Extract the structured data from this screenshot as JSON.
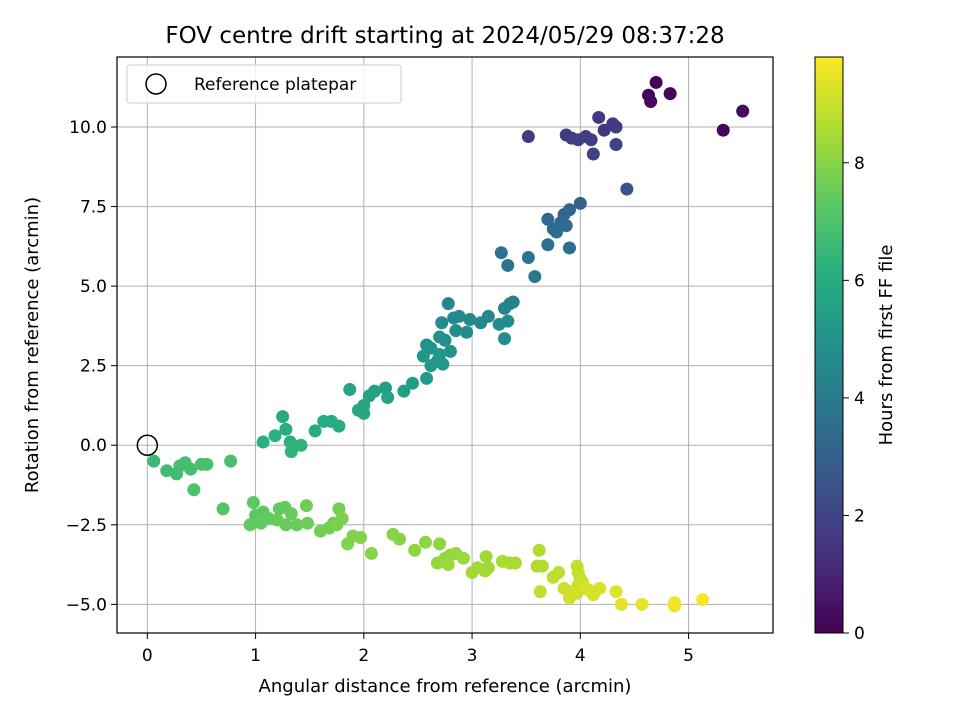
{
  "chart_data": {
    "type": "scatter",
    "title": "FOV centre drift starting at 2024/05/29 08:37:28",
    "xlabel": "Angular distance from reference (arcmin)",
    "ylabel": "Rotation from reference (arcmin)",
    "xlim": [
      -0.28,
      5.78
    ],
    "ylim": [
      -5.9,
      12.2
    ],
    "xticks": [
      0,
      1,
      2,
      3,
      4,
      5
    ],
    "xtick_labels": [
      "0",
      "1",
      "2",
      "3",
      "4",
      "5"
    ],
    "yticks": [
      -5.0,
      -2.5,
      0.0,
      2.5,
      5.0,
      7.5,
      10.0
    ],
    "ytick_labels": [
      "−5.0",
      "−2.5",
      "0.0",
      "2.5",
      "5.0",
      "7.5",
      "10.0"
    ],
    "grid": true,
    "legend": {
      "placement": "top-left",
      "entries": [
        "Reference platepar"
      ]
    },
    "reference_point": {
      "x": 0,
      "y": 0
    },
    "colorbar": {
      "label": "Hours from first FF file",
      "colormap": "viridis",
      "range": [
        0,
        9.8
      ],
      "ticks": [
        0,
        2,
        4,
        6,
        8
      ],
      "tick_labels": [
        "0",
        "2",
        "4",
        "6",
        "8"
      ]
    },
    "points": [
      {
        "x": 4.7,
        "y": 11.4,
        "t": 0.1
      },
      {
        "x": 4.63,
        "y": 11.0,
        "t": 0.2
      },
      {
        "x": 4.65,
        "y": 10.8,
        "t": 0.2
      },
      {
        "x": 4.83,
        "y": 11.05,
        "t": 0.1
      },
      {
        "x": 5.5,
        "y": 10.5,
        "t": 0.3
      },
      {
        "x": 5.32,
        "y": 9.9,
        "t": 0.2
      },
      {
        "x": 4.17,
        "y": 10.3,
        "t": 1.6
      },
      {
        "x": 4.3,
        "y": 10.1,
        "t": 1.7
      },
      {
        "x": 4.33,
        "y": 10.0,
        "t": 1.7
      },
      {
        "x": 4.22,
        "y": 9.9,
        "t": 1.6
      },
      {
        "x": 3.52,
        "y": 9.7,
        "t": 1.7
      },
      {
        "x": 3.87,
        "y": 9.75,
        "t": 1.7
      },
      {
        "x": 3.92,
        "y": 9.65,
        "t": 1.7
      },
      {
        "x": 3.98,
        "y": 9.6,
        "t": 1.8
      },
      {
        "x": 4.05,
        "y": 9.7,
        "t": 1.8
      },
      {
        "x": 4.1,
        "y": 9.6,
        "t": 1.8
      },
      {
        "x": 4.33,
        "y": 9.45,
        "t": 1.9
      },
      {
        "x": 4.12,
        "y": 9.15,
        "t": 1.9
      },
      {
        "x": 4.43,
        "y": 8.05,
        "t": 2.5
      },
      {
        "x": 4.0,
        "y": 7.6,
        "t": 3.0
      },
      {
        "x": 3.9,
        "y": 7.4,
        "t": 3.1
      },
      {
        "x": 3.85,
        "y": 7.25,
        "t": 3.2
      },
      {
        "x": 3.7,
        "y": 7.1,
        "t": 3.3
      },
      {
        "x": 3.82,
        "y": 7.0,
        "t": 3.3
      },
      {
        "x": 3.87,
        "y": 6.9,
        "t": 3.4
      },
      {
        "x": 3.75,
        "y": 6.8,
        "t": 3.4
      },
      {
        "x": 3.78,
        "y": 6.7,
        "t": 3.5
      },
      {
        "x": 3.7,
        "y": 6.3,
        "t": 3.6
      },
      {
        "x": 3.9,
        "y": 6.2,
        "t": 3.6
      },
      {
        "x": 3.27,
        "y": 6.05,
        "t": 3.7
      },
      {
        "x": 3.52,
        "y": 5.9,
        "t": 3.7
      },
      {
        "x": 3.33,
        "y": 5.65,
        "t": 3.8
      },
      {
        "x": 3.58,
        "y": 5.3,
        "t": 3.9
      },
      {
        "x": 3.38,
        "y": 4.5,
        "t": 4.3
      },
      {
        "x": 3.35,
        "y": 4.45,
        "t": 4.3
      },
      {
        "x": 2.78,
        "y": 4.45,
        "t": 4.5
      },
      {
        "x": 3.3,
        "y": 4.3,
        "t": 4.4
      },
      {
        "x": 2.88,
        "y": 4.05,
        "t": 4.6
      },
      {
        "x": 2.83,
        "y": 4.0,
        "t": 4.6
      },
      {
        "x": 3.15,
        "y": 4.05,
        "t": 4.5
      },
      {
        "x": 2.98,
        "y": 3.95,
        "t": 4.6
      },
      {
        "x": 3.08,
        "y": 3.85,
        "t": 4.6
      },
      {
        "x": 3.25,
        "y": 3.8,
        "t": 4.7
      },
      {
        "x": 3.33,
        "y": 3.9,
        "t": 4.7
      },
      {
        "x": 2.72,
        "y": 3.85,
        "t": 4.7
      },
      {
        "x": 2.85,
        "y": 3.6,
        "t": 4.8
      },
      {
        "x": 2.95,
        "y": 3.55,
        "t": 4.8
      },
      {
        "x": 2.7,
        "y": 3.4,
        "t": 4.9
      },
      {
        "x": 2.75,
        "y": 3.3,
        "t": 4.9
      },
      {
        "x": 3.3,
        "y": 3.35,
        "t": 4.8
      },
      {
        "x": 2.58,
        "y": 3.15,
        "t": 5.0
      },
      {
        "x": 2.62,
        "y": 3.05,
        "t": 5.0
      },
      {
        "x": 2.8,
        "y": 2.95,
        "t": 5.0
      },
      {
        "x": 2.7,
        "y": 2.85,
        "t": 5.1
      },
      {
        "x": 2.55,
        "y": 2.8,
        "t": 5.1
      },
      {
        "x": 2.68,
        "y": 2.65,
        "t": 5.1
      },
      {
        "x": 2.73,
        "y": 2.55,
        "t": 5.2
      },
      {
        "x": 2.62,
        "y": 2.5,
        "t": 5.2
      },
      {
        "x": 2.58,
        "y": 2.1,
        "t": 5.3
      },
      {
        "x": 2.45,
        "y": 1.95,
        "t": 5.4
      },
      {
        "x": 2.37,
        "y": 1.7,
        "t": 5.5
      },
      {
        "x": 2.2,
        "y": 1.8,
        "t": 5.5
      },
      {
        "x": 2.1,
        "y": 1.7,
        "t": 5.6
      },
      {
        "x": 2.05,
        "y": 1.55,
        "t": 5.6
      },
      {
        "x": 2.22,
        "y": 1.5,
        "t": 5.6
      },
      {
        "x": 1.87,
        "y": 1.75,
        "t": 5.7
      },
      {
        "x": 2.0,
        "y": 1.25,
        "t": 5.8
      },
      {
        "x": 1.95,
        "y": 1.1,
        "t": 5.8
      },
      {
        "x": 2.0,
        "y": 1.0,
        "t": 5.8
      },
      {
        "x": 1.25,
        "y": 0.9,
        "t": 6.0
      },
      {
        "x": 1.63,
        "y": 0.75,
        "t": 6.0
      },
      {
        "x": 1.7,
        "y": 0.75,
        "t": 6.0
      },
      {
        "x": 1.77,
        "y": 0.6,
        "t": 6.1
      },
      {
        "x": 1.55,
        "y": 0.45,
        "t": 6.1
      },
      {
        "x": 1.28,
        "y": 0.5,
        "t": 6.1
      },
      {
        "x": 1.18,
        "y": 0.3,
        "t": 6.2
      },
      {
        "x": 1.07,
        "y": 0.1,
        "t": 6.2
      },
      {
        "x": 1.32,
        "y": 0.1,
        "t": 6.2
      },
      {
        "x": 1.42,
        "y": 0.0,
        "t": 6.3
      },
      {
        "x": 1.33,
        "y": -0.2,
        "t": 6.3
      },
      {
        "x": 0.06,
        "y": -0.5,
        "t": 6.6
      },
      {
        "x": 0.18,
        "y": -0.8,
        "t": 6.7
      },
      {
        "x": 0.27,
        "y": -0.9,
        "t": 6.7
      },
      {
        "x": 0.3,
        "y": -0.65,
        "t": 6.8
      },
      {
        "x": 0.35,
        "y": -0.55,
        "t": 6.8
      },
      {
        "x": 0.4,
        "y": -0.75,
        "t": 6.8
      },
      {
        "x": 0.5,
        "y": -0.6,
        "t": 6.9
      },
      {
        "x": 0.55,
        "y": -0.6,
        "t": 6.9
      },
      {
        "x": 0.77,
        "y": -0.5,
        "t": 6.9
      },
      {
        "x": 0.43,
        "y": -1.4,
        "t": 7.0
      },
      {
        "x": 0.7,
        "y": -2.0,
        "t": 7.1
      },
      {
        "x": 0.98,
        "y": -1.8,
        "t": 7.3
      },
      {
        "x": 1.0,
        "y": -2.2,
        "t": 7.3
      },
      {
        "x": 1.07,
        "y": -2.1,
        "t": 7.3
      },
      {
        "x": 0.95,
        "y": -2.5,
        "t": 7.4
      },
      {
        "x": 1.05,
        "y": -2.45,
        "t": 7.4
      },
      {
        "x": 1.12,
        "y": -2.3,
        "t": 7.4
      },
      {
        "x": 1.22,
        "y": -2.0,
        "t": 7.4
      },
      {
        "x": 1.27,
        "y": -1.95,
        "t": 7.4
      },
      {
        "x": 1.33,
        "y": -2.15,
        "t": 7.5
      },
      {
        "x": 1.2,
        "y": -2.35,
        "t": 7.5
      },
      {
        "x": 1.28,
        "y": -2.5,
        "t": 7.5
      },
      {
        "x": 1.38,
        "y": -2.5,
        "t": 7.5
      },
      {
        "x": 1.48,
        "y": -2.45,
        "t": 7.6
      },
      {
        "x": 1.47,
        "y": -1.9,
        "t": 7.6
      },
      {
        "x": 1.6,
        "y": -2.7,
        "t": 7.7
      },
      {
        "x": 1.68,
        "y": -2.6,
        "t": 7.7
      },
      {
        "x": 1.72,
        "y": -2.45,
        "t": 7.7
      },
      {
        "x": 1.77,
        "y": -2.0,
        "t": 7.7
      },
      {
        "x": 1.8,
        "y": -2.3,
        "t": 7.8
      },
      {
        "x": 1.75,
        "y": -2.5,
        "t": 7.8
      },
      {
        "x": 1.85,
        "y": -3.1,
        "t": 7.9
      },
      {
        "x": 1.9,
        "y": -2.85,
        "t": 7.9
      },
      {
        "x": 1.97,
        "y": -2.9,
        "t": 7.9
      },
      {
        "x": 2.07,
        "y": -3.4,
        "t": 8.0
      },
      {
        "x": 2.27,
        "y": -2.8,
        "t": 8.0
      },
      {
        "x": 2.33,
        "y": -2.95,
        "t": 8.0
      },
      {
        "x": 2.47,
        "y": -3.3,
        "t": 8.1
      },
      {
        "x": 2.57,
        "y": -3.05,
        "t": 8.1
      },
      {
        "x": 2.7,
        "y": -3.1,
        "t": 8.1
      },
      {
        "x": 2.68,
        "y": -3.7,
        "t": 8.2
      },
      {
        "x": 2.75,
        "y": -3.55,
        "t": 8.2
      },
      {
        "x": 2.8,
        "y": -3.45,
        "t": 8.2
      },
      {
        "x": 2.85,
        "y": -3.4,
        "t": 8.2
      },
      {
        "x": 2.78,
        "y": -3.75,
        "t": 8.3
      },
      {
        "x": 2.92,
        "y": -3.55,
        "t": 8.3
      },
      {
        "x": 3.05,
        "y": -3.85,
        "t": 8.4
      },
      {
        "x": 3.0,
        "y": -4.0,
        "t": 8.4
      },
      {
        "x": 3.12,
        "y": -3.95,
        "t": 8.4
      },
      {
        "x": 3.15,
        "y": -3.85,
        "t": 8.4
      },
      {
        "x": 3.13,
        "y": -3.5,
        "t": 8.4
      },
      {
        "x": 3.28,
        "y": -3.65,
        "t": 8.5
      },
      {
        "x": 3.35,
        "y": -3.7,
        "t": 8.5
      },
      {
        "x": 3.4,
        "y": -3.7,
        "t": 8.5
      },
      {
        "x": 3.62,
        "y": -3.3,
        "t": 8.6
      },
      {
        "x": 3.6,
        "y": -3.8,
        "t": 8.6
      },
      {
        "x": 3.65,
        "y": -3.8,
        "t": 8.7
      },
      {
        "x": 3.63,
        "y": -4.6,
        "t": 8.8
      },
      {
        "x": 3.75,
        "y": -4.15,
        "t": 8.8
      },
      {
        "x": 3.8,
        "y": -4.0,
        "t": 8.8
      },
      {
        "x": 3.97,
        "y": -3.8,
        "t": 8.9
      },
      {
        "x": 3.98,
        "y": -4.0,
        "t": 8.9
      },
      {
        "x": 4.0,
        "y": -4.2,
        "t": 8.9
      },
      {
        "x": 3.98,
        "y": -4.4,
        "t": 9.0
      },
      {
        "x": 4.02,
        "y": -4.3,
        "t": 9.0
      },
      {
        "x": 3.85,
        "y": -4.5,
        "t": 9.0
      },
      {
        "x": 3.92,
        "y": -4.6,
        "t": 9.1
      },
      {
        "x": 3.9,
        "y": -4.8,
        "t": 9.1
      },
      {
        "x": 3.97,
        "y": -4.65,
        "t": 9.1
      },
      {
        "x": 4.05,
        "y": -4.5,
        "t": 9.2
      },
      {
        "x": 4.08,
        "y": -4.55,
        "t": 9.2
      },
      {
        "x": 4.12,
        "y": -4.7,
        "t": 9.2
      },
      {
        "x": 4.18,
        "y": -4.5,
        "t": 9.2
      },
      {
        "x": 4.33,
        "y": -4.6,
        "t": 9.3
      },
      {
        "x": 4.38,
        "y": -5.0,
        "t": 9.4
      },
      {
        "x": 4.57,
        "y": -5.0,
        "t": 9.5
      },
      {
        "x": 4.87,
        "y": -4.95,
        "t": 9.6
      },
      {
        "x": 4.87,
        "y": -5.05,
        "t": 9.6
      },
      {
        "x": 5.13,
        "y": -4.85,
        "t": 9.7
      }
    ]
  }
}
